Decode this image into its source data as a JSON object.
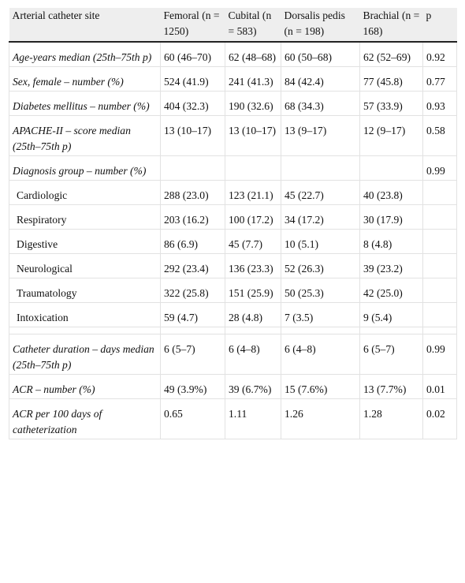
{
  "table": {
    "header": [
      "Arterial catheter site",
      "Femoral (n = 1250)",
      "Cubital (n = 583)",
      "Dorsalis pedis (n = 198)",
      "Brachial (n = 168)",
      "p"
    ],
    "sections": [
      [
        {
          "label": "Age-years median (25th–75th p)",
          "cells": [
            "60 (46–70)",
            "62 (48–68)",
            "60 (50–68)",
            "62 (52–69)",
            "0.92"
          ]
        },
        {
          "label": "Sex, female – number (%)",
          "cells": [
            "524 (41.9)",
            "241 (41.3)",
            "84 (42.4)",
            "77 (45.8)",
            "0.77"
          ]
        },
        {
          "label": "Diabetes mellitus – number (%)",
          "cells": [
            "404 (32.3)",
            "190 (32.6)",
            "68 (34.3)",
            "57 (33.9)",
            "0.93"
          ]
        },
        {
          "label": "APACHE-II – score median (25th–75th p)",
          "cells": [
            "13 (10–17)",
            "13 (10–17)",
            "13 (9–17)",
            "12 (9–17)",
            "0.58"
          ]
        },
        {
          "label": "Diagnosis group – number (%)",
          "cells": [
            null,
            null,
            null,
            null,
            "0.99"
          ]
        },
        {
          "label": "Cardiologic",
          "indent": true,
          "cells": [
            "288 (23.0)",
            "123 (21.1)",
            "45 (22.7)",
            "40 (23.8)",
            null
          ]
        },
        {
          "label": "Respiratory",
          "indent": true,
          "cells": [
            "203 (16.2)",
            "100 (17.2)",
            "34 (17.2)",
            "30 (17.9)",
            null
          ]
        },
        {
          "label": "Digestive",
          "indent": true,
          "cells": [
            "86 (6.9)",
            "45 (7.7)",
            "10 (5.1)",
            "8 (4.8)",
            null
          ]
        },
        {
          "label": "Neurological",
          "indent": true,
          "cells": [
            "292 (23.4)",
            "136 (23.3)",
            "52 (26.3)",
            "39 (23.2)",
            null
          ]
        },
        {
          "label": "Traumatology",
          "indent": true,
          "cells": [
            "322 (25.8)",
            "151 (25.9)",
            "50 (25.3)",
            "42 (25.0)",
            null
          ]
        },
        {
          "label": "Intoxication",
          "indent": true,
          "cells": [
            "59 (4.7)",
            "28 (4.8)",
            "7 (3.5)",
            "9 (5.4)",
            null
          ]
        }
      ],
      [
        {
          "label": "Catheter duration – days median (25th–75th p)",
          "cells": [
            "6 (5–7)",
            "6 (4–8)",
            "6 (4–8)",
            "6 (5–7)",
            "0.99"
          ]
        },
        {
          "label": "ACR – number (%)",
          "cells": [
            "49 (3.9%)",
            "39 (6.7%)",
            "15 (7.6%)",
            "13 (7.7%)",
            "0.01"
          ]
        },
        {
          "label": "ACR per 100 days of catheterization",
          "cells": [
            "0.65",
            "1.11",
            "1.26",
            "1.28",
            "0.02"
          ]
        }
      ]
    ]
  }
}
